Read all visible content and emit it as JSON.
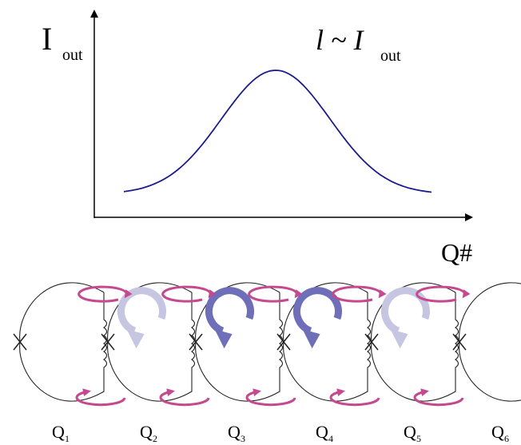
{
  "plot": {
    "y_label": {
      "main": "I",
      "sub": "out"
    },
    "annotation": {
      "symbol": "l ~ I",
      "sub": "out"
    },
    "x_label": "Q#"
  },
  "qubits": [
    {
      "label": "Q",
      "index": "1"
    },
    {
      "label": "Q",
      "index": "2"
    },
    {
      "label": "Q",
      "index": "3"
    },
    {
      "label": "Q",
      "index": "4"
    },
    {
      "label": "Q",
      "index": "5"
    },
    {
      "label": "Q",
      "index": "6"
    }
  ]
}
